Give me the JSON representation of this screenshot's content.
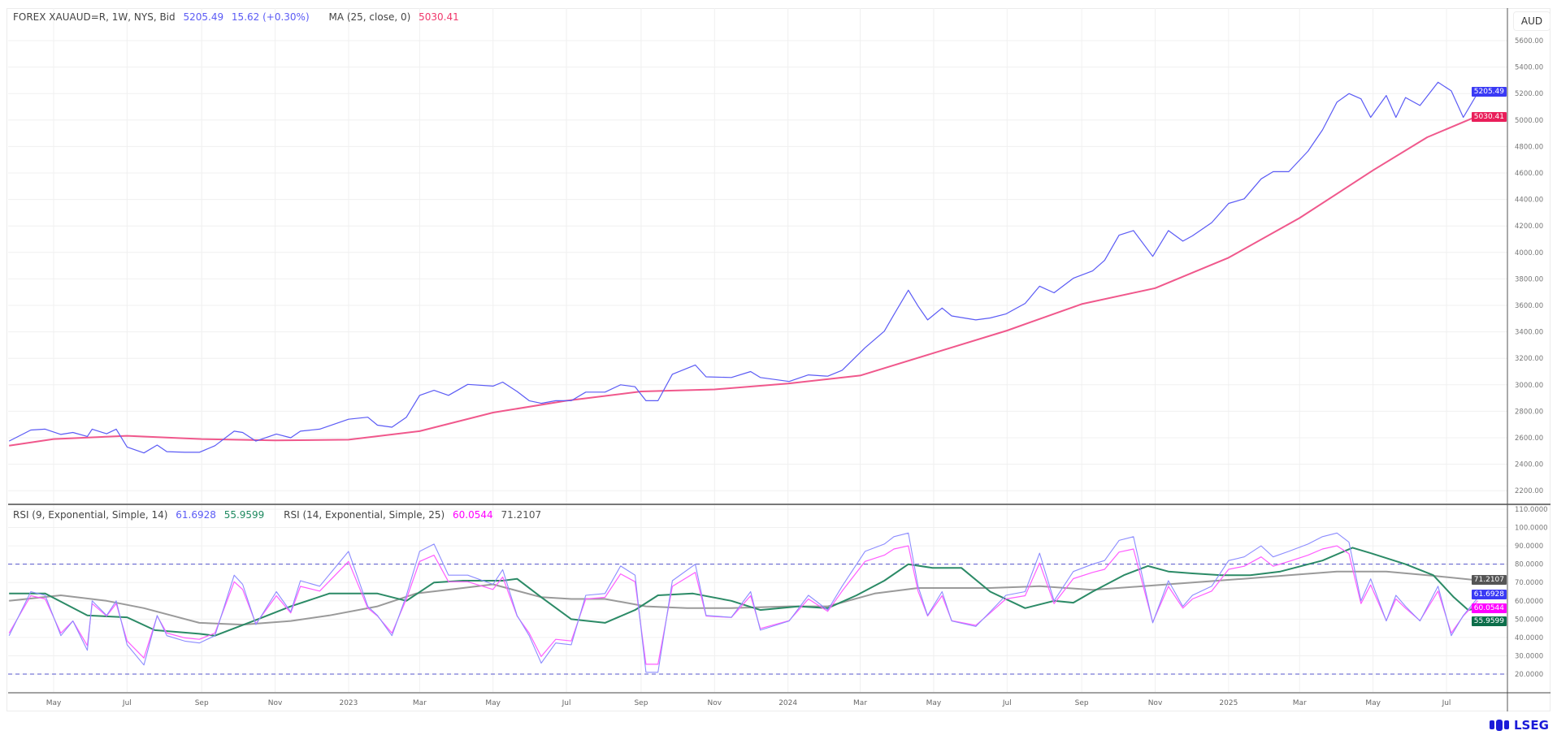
{
  "legend_main": {
    "symbol": "FOREX XAUAUD=R, 1W, NYS, Bid",
    "last": "5205.49",
    "change": "15.62 (+0.30%)",
    "ma_label": "MA (25, close, 0)",
    "ma_value": "5030.41"
  },
  "legend_rsi": {
    "rsi9_label": "RSI (9, Exponential, Simple, 14)",
    "rsi9_value": "61.6928",
    "rsi9_ma_value": "55.9599",
    "rsi14_label": "RSI (14, Exponential, Simple, 25)",
    "rsi14_value": "60.0544",
    "rsi14_ma_value": "71.2107"
  },
  "currency": "AUD",
  "logo": "LSEG",
  "colors": {
    "price": "#5b5bf5",
    "ma": "#f0588c",
    "ma_tag": "#e91e5a",
    "rsi9": "#8c8cff",
    "rsi9_tag": "#3a3af5",
    "rsi14": "#ff5cff",
    "rsi14_tag": "#ff00ff",
    "rsi9_ma": "#2b8a66",
    "rsi9_ma_tag": "#0c6e4a",
    "rsi14_ma": "#9a9a9a",
    "rsi14_ma_tag": "#555555",
    "bands": "#5555cc"
  },
  "chart_data": [
    {
      "type": "line",
      "ylabel": "AUD",
      "ylim": [
        2100,
        5700
      ],
      "yticks": [
        "2200.00",
        "2400.00",
        "2600.00",
        "2800.00",
        "3000.00",
        "3200.00",
        "3400.00",
        "3600.00",
        "3800.00",
        "4000.00",
        "4200.00",
        "4400.00",
        "4600.00",
        "4800.00",
        "5000.00",
        "5200.00",
        "5400.00",
        "5600.00"
      ],
      "xticks": [
        [
          "2022-05-01",
          "May"
        ],
        [
          "2022-07-01",
          "Jul"
        ],
        [
          "2022-09-01",
          "Sep"
        ],
        [
          "2022-11-01",
          "Nov"
        ],
        [
          "2023-01-01",
          "2023"
        ],
        [
          "2023-03-01",
          "Mar"
        ],
        [
          "2023-05-01",
          "May"
        ],
        [
          "2023-07-01",
          "Jul"
        ],
        [
          "2023-09-01",
          "Sep"
        ],
        [
          "2023-11-01",
          "Nov"
        ],
        [
          "2024-01-01",
          "2024"
        ],
        [
          "2024-03-01",
          "Mar"
        ],
        [
          "2024-05-01",
          "May"
        ],
        [
          "2024-07-01",
          "Jul"
        ],
        [
          "2024-09-01",
          "Sep"
        ],
        [
          "2024-11-01",
          "Nov"
        ],
        [
          "2025-01-01",
          "2025"
        ],
        [
          "2025-03-01",
          "Mar"
        ],
        [
          "2025-05-01",
          "May"
        ],
        [
          "2025-07-01",
          "Jul"
        ]
      ],
      "grid": true,
      "last_value_tags": [
        "5205.49",
        "5030.41"
      ],
      "x": [
        "2022-03-25",
        "2022-04-12",
        "2022-04-24",
        "2022-05-07",
        "2022-05-17",
        "2022-05-29",
        "2022-06-02",
        "2022-06-14",
        "2022-06-22",
        "2022-07-01",
        "2022-07-15",
        "2022-07-26",
        "2022-08-03",
        "2022-08-18",
        "2022-08-30",
        "2022-09-12",
        "2022-09-28",
        "2022-10-05",
        "2022-10-16",
        "2022-11-02",
        "2022-11-14",
        "2022-11-22",
        "2022-12-08",
        "2023-01-01",
        "2023-01-17",
        "2023-01-25",
        "2023-02-06",
        "2023-02-18",
        "2023-03-01",
        "2023-03-13",
        "2023-03-25",
        "2023-04-10",
        "2023-05-01",
        "2023-05-09",
        "2023-05-21",
        "2023-05-31",
        "2023-06-10",
        "2023-06-22",
        "2023-07-05",
        "2023-07-17",
        "2023-08-02",
        "2023-08-15",
        "2023-08-27",
        "2023-09-05",
        "2023-09-15",
        "2023-09-27",
        "2023-10-16",
        "2023-10-25",
        "2023-11-15",
        "2023-12-01",
        "2023-12-09",
        "2024-01-02",
        "2024-01-18",
        "2024-02-03",
        "2024-02-15",
        "2024-03-05",
        "2024-03-21",
        "2024-03-29",
        "2024-04-10",
        "2024-04-18",
        "2024-04-26",
        "2024-05-08",
        "2024-05-16",
        "2024-06-05",
        "2024-06-17",
        "2024-06-30",
        "2024-07-16",
        "2024-07-28",
        "2024-08-09",
        "2024-08-25",
        "2024-09-10",
        "2024-09-20",
        "2024-10-02",
        "2024-10-14",
        "2024-10-30",
        "2024-11-12",
        "2024-11-24",
        "2024-12-02",
        "2024-12-18",
        "2025-01-01",
        "2025-01-14",
        "2025-01-28",
        "2025-02-07",
        "2025-02-20",
        "2025-03-08",
        "2025-03-20",
        "2025-04-01",
        "2025-04-11",
        "2025-04-21",
        "2025-04-29",
        "2025-05-12",
        "2025-05-20",
        "2025-05-28",
        "2025-06-09",
        "2025-06-24",
        "2025-07-05",
        "2025-07-15",
        "2025-07-27"
      ],
      "series": [
        {
          "name": "FOREX XAUAUD=R, 1W, NYS, Bid",
          "values": [
            2575,
            2658,
            2665,
            2625,
            2640,
            2610,
            2665,
            2630,
            2665,
            2530,
            2485,
            2545,
            2495,
            2490,
            2490,
            2540,
            2650,
            2640,
            2575,
            2628,
            2600,
            2650,
            2665,
            2740,
            2755,
            2695,
            2680,
            2755,
            2920,
            2958,
            2920,
            3003,
            2990,
            3020,
            2950,
            2880,
            2860,
            2880,
            2880,
            2945,
            2945,
            3000,
            2985,
            2880,
            2880,
            3080,
            3150,
            3060,
            3055,
            3100,
            3055,
            3025,
            3075,
            3065,
            3110,
            3280,
            3405,
            3530,
            3715,
            3595,
            3490,
            3580,
            3520,
            3490,
            3505,
            3535,
            3615,
            3745,
            3695,
            3805,
            3860,
            3940,
            4130,
            4165,
            3970,
            4165,
            4085,
            4125,
            4225,
            4370,
            4405,
            4555,
            4610,
            4610,
            4765,
            4925,
            5135,
            5200,
            5160,
            5020,
            5185,
            5020,
            5170,
            5110,
            5285,
            5220,
            5020,
            5205.49
          ]
        },
        {
          "name": "MA (25, close, 0)",
          "points": [
            [
              "2022-03-25",
              2540
            ],
            [
              "2022-05-01",
              2590
            ],
            [
              "2022-07-01",
              2615
            ],
            [
              "2022-09-01",
              2590
            ],
            [
              "2022-11-01",
              2580
            ],
            [
              "2023-01-01",
              2585
            ],
            [
              "2023-03-01",
              2650
            ],
            [
              "2023-05-01",
              2790
            ],
            [
              "2023-07-01",
              2880
            ],
            [
              "2023-09-01",
              2950
            ],
            [
              "2023-11-01",
              2965
            ],
            [
              "2024-01-01",
              3010
            ],
            [
              "2024-03-01",
              3070
            ],
            [
              "2024-05-01",
              3240
            ],
            [
              "2024-07-01",
              3410
            ],
            [
              "2024-09-01",
              3610
            ],
            [
              "2024-11-01",
              3730
            ],
            [
              "2025-01-01",
              3960
            ],
            [
              "2025-03-01",
              4260
            ],
            [
              "2025-05-01",
              4620
            ],
            [
              "2025-06-15",
              4870
            ],
            [
              "2025-07-27",
              5030.41
            ]
          ]
        }
      ]
    },
    {
      "type": "line",
      "ylim": [
        15,
        112
      ],
      "yticks": [
        "20.0000",
        "30.0000",
        "40.0000",
        "50.0000",
        "60.0000",
        "70.0000",
        "80.0000",
        "90.0000",
        "100.0000",
        "110.0000"
      ],
      "bands": [
        80,
        20
      ],
      "grid": true,
      "last_value_tags": [
        "71.2107",
        "61.6928",
        "60.0544",
        "55.9599"
      ],
      "series": [
        {
          "name": "RSI (9, Exponential, Simple, 14)",
          "values": [
            41,
            65,
            63,
            41,
            49,
            33,
            60,
            52,
            60,
            36,
            25,
            52,
            41,
            38,
            37,
            41,
            74,
            69,
            47,
            65,
            54,
            71,
            68,
            87,
            57,
            52,
            41,
            63,
            87,
            91,
            74,
            74,
            69,
            77,
            52,
            41,
            26,
            37,
            36,
            63,
            64,
            79,
            74,
            21,
            21,
            71,
            80,
            52,
            51,
            65,
            44,
            49,
            63,
            55,
            68,
            87,
            91,
            95,
            97,
            68,
            52,
            65,
            49,
            46,
            54,
            63,
            65,
            86,
            60,
            76,
            80,
            82,
            93,
            95,
            48,
            71,
            57,
            63,
            68,
            82,
            84,
            90,
            84,
            87,
            91,
            95,
            97,
            92,
            60,
            72,
            49,
            63,
            57,
            49,
            68,
            41,
            52,
            61.69
          ]
        },
        {
          "name": "RSI (14, Exponential, Simple, 25)",
          "values": [
            42.4,
            62.8,
            61,
            42.4,
            49,
            35.5,
            58.5,
            51.7,
            58.5,
            38.1,
            28.8,
            51.7,
            42.4,
            39.8,
            39,
            42.4,
            70.4,
            66.2,
            47.5,
            62.8,
            53.4,
            67.9,
            65.3,
            81.5,
            56,
            51.7,
            42.4,
            61,
            81.5,
            84.9,
            70.4,
            70.4,
            66.2,
            73,
            51.7,
            42.4,
            29.6,
            39,
            38.1,
            61,
            61.9,
            74.7,
            70.4,
            25.4,
            25.4,
            67.9,
            75.5,
            51.7,
            50.9,
            62.8,
            44.9,
            49.2,
            61,
            54.3,
            65.3,
            81.5,
            84.9,
            88.3,
            90,
            65.3,
            51.7,
            62.8,
            49.2,
            46.6,
            53.4,
            61,
            62.8,
            80.6,
            58.5,
            72.1,
            75.5,
            77.2,
            86.6,
            88.3,
            48.3,
            67.9,
            56,
            61,
            65.3,
            77.2,
            78.9,
            84,
            78.9,
            81.5,
            84.9,
            88.3,
            90,
            85.7,
            58.5,
            68.7,
            49.2,
            61,
            56,
            49.2,
            65.3,
            42.4,
            51.7,
            60.05
          ]
        },
        {
          "points": [
            [
              "2022-03-25",
              64
            ],
            [
              "2022-04-24",
              64
            ],
            [
              "2022-05-29",
              52
            ],
            [
              "2022-07-01",
              51
            ],
            [
              "2022-07-24",
              44
            ],
            [
              "2022-08-30",
              42
            ],
            [
              "2022-09-12",
              41
            ],
            [
              "2022-10-14",
              49
            ],
            [
              "2022-11-14",
              57
            ],
            [
              "2022-12-16",
              64
            ],
            [
              "2023-01-25",
              64
            ],
            [
              "2023-02-18",
              60
            ],
            [
              "2023-03-13",
              70
            ],
            [
              "2023-04-06",
              71
            ],
            [
              "2023-05-09",
              71
            ],
            [
              "2023-05-21",
              72
            ],
            [
              "2023-06-10",
              62
            ],
            [
              "2023-07-05",
              50
            ],
            [
              "2023-08-02",
              48
            ],
            [
              "2023-08-27",
              55
            ],
            [
              "2023-09-15",
              63
            ],
            [
              "2023-10-14",
              64
            ],
            [
              "2023-11-15",
              60
            ],
            [
              "2023-12-09",
              55
            ],
            [
              "2024-01-10",
              57
            ],
            [
              "2024-02-03",
              56
            ],
            [
              "2024-02-27",
              63
            ],
            [
              "2024-03-21",
              71
            ],
            [
              "2024-04-10",
              80
            ],
            [
              "2024-04-30",
              78
            ],
            [
              "2024-05-24",
              78
            ],
            [
              "2024-06-17",
              65
            ],
            [
              "2024-07-16",
              56
            ],
            [
              "2024-08-09",
              60
            ],
            [
              "2024-08-25",
              59
            ],
            [
              "2024-09-10",
              65
            ],
            [
              "2024-10-06",
              74
            ],
            [
              "2024-10-26",
              79
            ],
            [
              "2024-11-12",
              76
            ],
            [
              "2024-12-02",
              75
            ],
            [
              "2024-12-26",
              74
            ],
            [
              "2025-01-19",
              74
            ],
            [
              "2025-02-13",
              76
            ],
            [
              "2025-03-20",
              82
            ],
            [
              "2025-04-14",
              89
            ],
            [
              "2025-04-29",
              86
            ],
            [
              "2025-05-28",
              80
            ],
            [
              "2025-06-20",
              74
            ],
            [
              "2025-07-07",
              62
            ],
            [
              "2025-07-19",
              55
            ],
            [
              "2025-07-27",
              55.96
            ]
          ]
        },
        {
          "points": [
            [
              "2022-03-25",
              60
            ],
            [
              "2022-05-07",
              63
            ],
            [
              "2022-06-14",
              60
            ],
            [
              "2022-07-15",
              56
            ],
            [
              "2022-08-30",
              48
            ],
            [
              "2022-10-05",
              47
            ],
            [
              "2022-11-14",
              49
            ],
            [
              "2022-12-16",
              52
            ],
            [
              "2023-01-25",
              57
            ],
            [
              "2023-02-26",
              64
            ],
            [
              "2023-04-06",
              67
            ],
            [
              "2023-05-01",
              69
            ],
            [
              "2023-06-10",
              62
            ],
            [
              "2023-07-05",
              61
            ],
            [
              "2023-08-02",
              61
            ],
            [
              "2023-09-05",
              57
            ],
            [
              "2023-10-09",
              56
            ],
            [
              "2023-11-15",
              56
            ],
            [
              "2024-01-02",
              57
            ],
            [
              "2024-02-03",
              57
            ],
            [
              "2024-03-13",
              64
            ],
            [
              "2024-04-18",
              67
            ],
            [
              "2024-06-17",
              67
            ],
            [
              "2024-07-28",
              68
            ],
            [
              "2024-09-10",
              66
            ],
            [
              "2024-10-22",
              68
            ],
            [
              "2024-12-02",
              70
            ],
            [
              "2025-01-13",
              72
            ],
            [
              "2025-02-20",
              74
            ],
            [
              "2025-04-01",
              76
            ],
            [
              "2025-05-12",
              76
            ],
            [
              "2025-06-15",
              74
            ],
            [
              "2025-07-27",
              71.21
            ]
          ]
        }
      ]
    }
  ]
}
